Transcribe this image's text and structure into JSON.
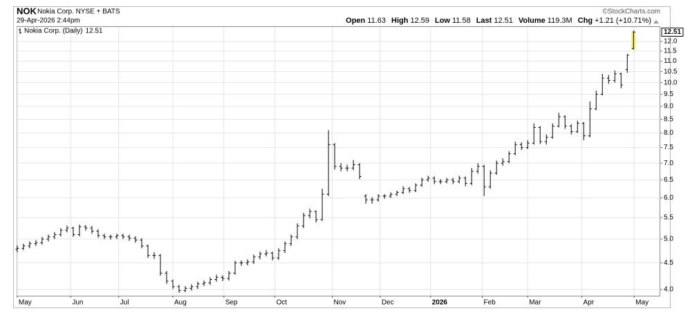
{
  "chart_data": {
    "type": "ohlc",
    "title": "NOK",
    "subtitle": "Nokia Corp. NYSE + BATS",
    "timestamp": "29-Apr-2026 2:44pm",
    "credit": "©StockCharts.com",
    "series_name": "Nokia Corp. (Daily)",
    "stats": {
      "open_label": "Open",
      "high_label": "High",
      "low_label": "Low",
      "last_label": "Last",
      "volume_label": "Volume",
      "volume": "119.3M",
      "chg_label": "Chg",
      "chg": "+1.21 (+10.71%)"
    },
    "color": "#000000",
    "highlight_last": "#f7f06e",
    "grid": true,
    "log_scale": true,
    "open": [
      4.78,
      4.8,
      4.85,
      4.9,
      4.92,
      5.0,
      5.05,
      5.1,
      5.2,
      5.25,
      5.1,
      5.28,
      5.25,
      5.18,
      5.08,
      5.05,
      5.05,
      5.08,
      5.05,
      5.02,
      4.98,
      4.85,
      4.65,
      4.65,
      4.3,
      4.15,
      4.05,
      3.98,
      4.02,
      4.05,
      4.1,
      4.12,
      4.18,
      4.22,
      4.2,
      4.3,
      4.5,
      4.5,
      4.52,
      4.62,
      4.68,
      4.7,
      4.6,
      4.75,
      4.9,
      5.05,
      5.3,
      5.55,
      5.65,
      5.45,
      6.1,
      7.6,
      6.9,
      6.85,
      6.85,
      6.95,
      6.05,
      5.95,
      5.95,
      6.05,
      6.05,
      6.1,
      6.15,
      6.25,
      6.2,
      6.35,
      6.5,
      6.55,
      6.45,
      6.45,
      6.5,
      6.45,
      6.55,
      6.4,
      6.75,
      6.9,
      6.3,
      6.7,
      7.0,
      7.05,
      7.3,
      7.6,
      7.5,
      7.65,
      8.2,
      7.7,
      7.85,
      8.25,
      8.6,
      8.25,
      8.05,
      8.35,
      7.9,
      8.9,
      9.5,
      10.2,
      10.1,
      10.4,
      10.6,
      11.63
    ],
    "high": [
      4.86,
      4.9,
      4.95,
      4.98,
      5.05,
      5.1,
      5.16,
      5.25,
      5.31,
      5.28,
      5.33,
      5.32,
      5.3,
      5.22,
      5.12,
      5.1,
      5.12,
      5.12,
      5.1,
      5.06,
      5.02,
      4.88,
      4.72,
      4.68,
      4.34,
      4.18,
      4.08,
      4.06,
      4.09,
      4.14,
      4.16,
      4.22,
      4.27,
      4.26,
      4.34,
      4.54,
      4.55,
      4.57,
      4.67,
      4.73,
      4.76,
      4.73,
      4.8,
      4.95,
      5.1,
      5.36,
      5.62,
      5.72,
      5.68,
      6.25,
      8.1,
      7.65,
      7.0,
      6.95,
      7.1,
      7.0,
      6.1,
      6.02,
      6.1,
      6.1,
      6.15,
      6.2,
      6.32,
      6.3,
      6.4,
      6.56,
      6.62,
      6.6,
      6.52,
      6.56,
      6.56,
      6.62,
      6.6,
      6.85,
      7.0,
      6.95,
      6.78,
      7.08,
      7.15,
      7.38,
      7.7,
      7.68,
      7.75,
      8.35,
      8.25,
      7.95,
      8.35,
      8.75,
      8.65,
      8.32,
      8.45,
      8.4,
      9.2,
      9.65,
      10.4,
      10.35,
      10.55,
      10.45,
      11.35,
      12.59
    ],
    "low": [
      4.72,
      4.76,
      4.8,
      4.85,
      4.88,
      4.95,
      5.0,
      5.06,
      5.15,
      5.05,
      5.06,
      5.19,
      5.12,
      5.03,
      5.0,
      4.99,
      5.0,
      5.0,
      4.96,
      4.92,
      4.8,
      4.6,
      4.58,
      4.25,
      4.1,
      4.01,
      3.94,
      3.95,
      3.98,
      4.01,
      4.06,
      4.08,
      4.14,
      4.15,
      4.16,
      4.27,
      4.44,
      4.45,
      4.48,
      4.57,
      4.63,
      4.55,
      4.56,
      4.7,
      4.85,
      5.0,
      5.25,
      5.48,
      5.38,
      5.42,
      6.05,
      6.8,
      6.75,
      6.75,
      6.78,
      6.52,
      5.85,
      5.85,
      5.9,
      5.98,
      6.0,
      6.05,
      6.1,
      6.14,
      6.16,
      6.3,
      6.45,
      6.38,
      6.38,
      6.4,
      6.38,
      6.4,
      6.32,
      6.35,
      6.68,
      6.05,
      6.25,
      6.65,
      6.92,
      7.0,
      7.25,
      7.42,
      7.45,
      7.6,
      7.62,
      7.6,
      7.8,
      8.2,
      8.15,
      7.95,
      8.0,
      7.75,
      7.85,
      8.85,
      9.45,
      9.95,
      10.0,
      9.75,
      10.45,
      11.58
    ],
    "close": [
      4.8,
      4.85,
      4.9,
      4.92,
      5.0,
      5.05,
      5.1,
      5.2,
      5.25,
      5.1,
      5.28,
      5.25,
      5.18,
      5.08,
      5.05,
      5.05,
      5.08,
      5.05,
      5.02,
      4.98,
      4.85,
      4.65,
      4.65,
      4.3,
      4.15,
      4.05,
      3.98,
      4.02,
      4.05,
      4.1,
      4.12,
      4.18,
      4.22,
      4.2,
      4.3,
      4.5,
      4.5,
      4.52,
      4.62,
      4.68,
      4.7,
      4.6,
      4.75,
      4.9,
      5.05,
      5.3,
      5.55,
      5.65,
      5.45,
      6.1,
      7.6,
      6.9,
      6.85,
      6.85,
      6.95,
      6.6,
      5.95,
      5.95,
      6.05,
      6.05,
      6.1,
      6.15,
      6.25,
      6.2,
      6.35,
      6.5,
      6.55,
      6.45,
      6.45,
      6.5,
      6.45,
      6.55,
      6.4,
      6.75,
      6.9,
      6.3,
      6.7,
      7.0,
      7.05,
      7.3,
      7.6,
      7.5,
      7.65,
      8.2,
      7.7,
      7.85,
      8.25,
      8.6,
      8.25,
      8.05,
      8.35,
      7.9,
      8.9,
      9.5,
      10.2,
      10.1,
      10.4,
      9.9,
      11.3,
      12.51
    ],
    "xlim": [
      -0.1,
      103.3
    ],
    "xticks": [
      {
        "value": 0,
        "label": "May"
      },
      {
        "value": 8.6,
        "label": "Jun"
      },
      {
        "value": 16.3,
        "label": "Jul"
      },
      {
        "value": 25,
        "label": "Aug"
      },
      {
        "value": 33.2,
        "label": "Sep"
      },
      {
        "value": 41.4,
        "label": "Oct"
      },
      {
        "value": 50.6,
        "label": "Nov"
      },
      {
        "value": 58.3,
        "label": "Dec"
      },
      {
        "value": 66.4,
        "label": "2026"
      },
      {
        "value": 74.7,
        "label": "Feb"
      },
      {
        "value": 82,
        "label": "Mar"
      },
      {
        "value": 90.7,
        "label": "Apr"
      },
      {
        "value": 99.1,
        "label": "May"
      }
    ],
    "ylim": [
      3.89,
      12.84
    ],
    "yticks": [
      {
        "value": 4,
        "label": "4.0"
      },
      4.5,
      {
        "value": 5,
        "label": "5.0"
      },
      5.5,
      {
        "value": 6,
        "label": "6.0"
      },
      6.5,
      {
        "value": 7,
        "label": "7.0"
      },
      7.5,
      {
        "value": 8,
        "label": "8.0"
      },
      8.5,
      {
        "value": 9,
        "label": "9.0"
      },
      9.5,
      {
        "value": 10,
        "label": "10.0"
      },
      10.5,
      {
        "value": 11,
        "label": "11.0"
      },
      11.5,
      {
        "value": 12,
        "label": "12.0"
      }
    ]
  }
}
